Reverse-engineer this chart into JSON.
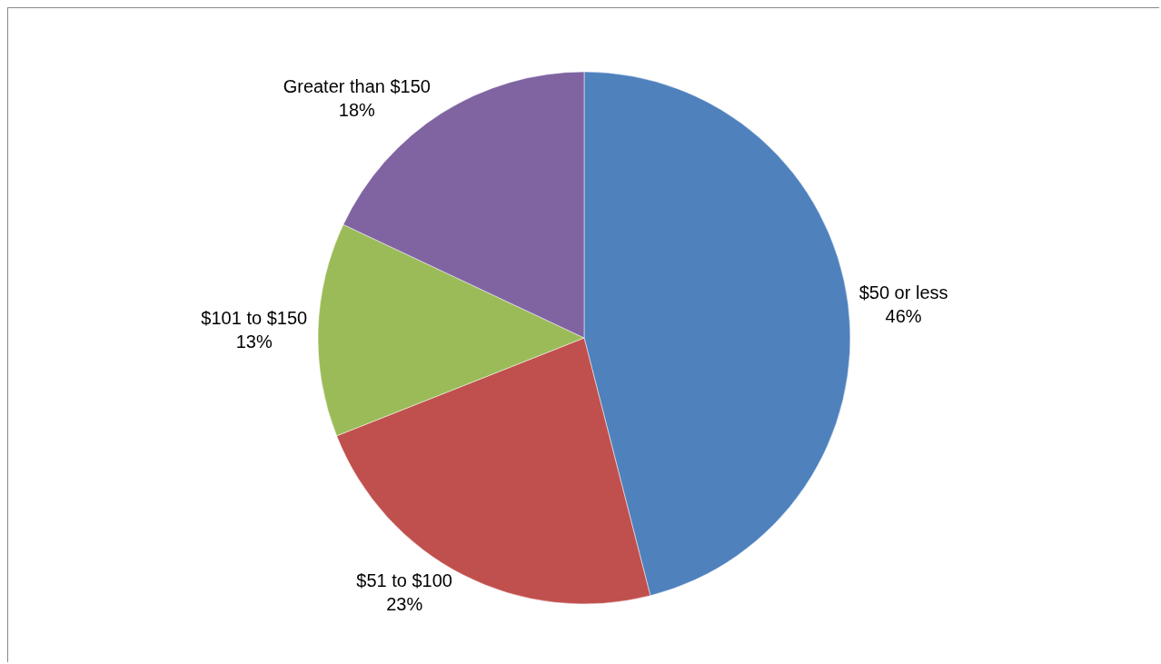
{
  "chart_data": {
    "type": "pie",
    "categories": [
      "$50 or less",
      "$51 to $100",
      "$101 to $150",
      "Greater than $150"
    ],
    "values": [
      46,
      23,
      13,
      18
    ],
    "value_labels": [
      "46%",
      "23%",
      "13%",
      "18%"
    ],
    "colors": [
      "#4f81bd",
      "#c0504d",
      "#9bbb59",
      "#8064a2"
    ],
    "legend": false
  }
}
